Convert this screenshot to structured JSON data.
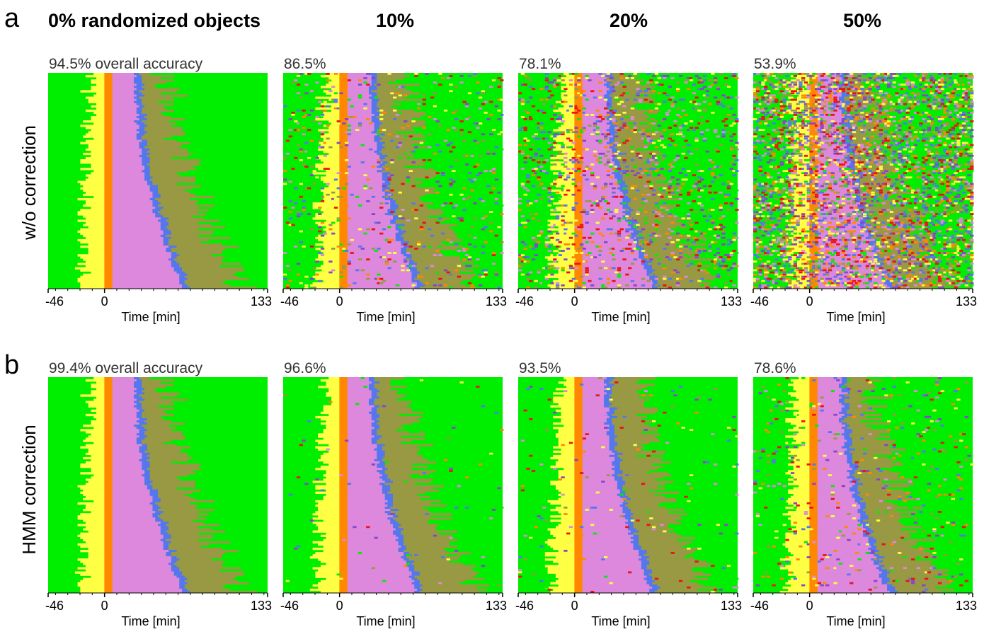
{
  "figure": {
    "panel_letters": [
      "a",
      "b"
    ],
    "column_headers": [
      "0% randomized objects",
      "10%",
      "20%",
      "50%"
    ],
    "row_labels": [
      "w/o correction",
      "HMM correction"
    ]
  },
  "chart_data": [
    {
      "type": "heatmap",
      "panel": "a",
      "row_label": "w/o correction",
      "randomized": "0% randomized objects",
      "accuracy_label": "94.5% overall accuracy",
      "accuracy": 94.5,
      "noise_fraction": 0.0,
      "xlabel": "Time [min]",
      "xticks": [
        "-46",
        "0",
        "133"
      ],
      "xlim": [
        -46,
        133
      ],
      "seed": 11
    },
    {
      "type": "heatmap",
      "panel": "a",
      "row_label": "w/o correction",
      "randomized": "10%",
      "accuracy_label": "86.5%",
      "accuracy": 86.5,
      "noise_fraction": 0.09,
      "xlabel": "Time [min]",
      "xticks": [
        "-46",
        "0",
        "133"
      ],
      "xlim": [
        -46,
        133
      ],
      "seed": 23
    },
    {
      "type": "heatmap",
      "panel": "a",
      "row_label": "w/o correction",
      "randomized": "20%",
      "accuracy_label": "78.1%",
      "accuracy": 78.1,
      "noise_fraction": 0.18,
      "xlabel": "Time [min]",
      "xticks": [
        "-46",
        "0",
        "133"
      ],
      "xlim": [
        -46,
        133
      ],
      "seed": 37
    },
    {
      "type": "heatmap",
      "panel": "a",
      "row_label": "w/o correction",
      "randomized": "50%",
      "accuracy_label": "53.9%",
      "accuracy": 53.9,
      "noise_fraction": 0.45,
      "xlabel": "Time [min]",
      "xticks": [
        "-46",
        "0",
        "133"
      ],
      "xlim": [
        -46,
        133
      ],
      "seed": 41
    },
    {
      "type": "heatmap",
      "panel": "b",
      "row_label": "HMM correction",
      "randomized": "0% randomized objects",
      "accuracy_label": "99.4% overall accuracy",
      "accuracy": 99.4,
      "noise_fraction": 0.0,
      "xlabel": "Time [min]",
      "xticks": [
        "-46",
        "0",
        "133"
      ],
      "xlim": [
        -46,
        133
      ],
      "seed": 11
    },
    {
      "type": "heatmap",
      "panel": "b",
      "row_label": "HMM correction",
      "randomized": "10%",
      "accuracy_label": "96.6%",
      "accuracy": 96.6,
      "noise_fraction": 0.01,
      "xlabel": "Time [min]",
      "xticks": [
        "-46",
        "0",
        "133"
      ],
      "xlim": [
        -46,
        133
      ],
      "seed": 53
    },
    {
      "type": "heatmap",
      "panel": "b",
      "row_label": "HMM correction",
      "randomized": "20%",
      "accuracy_label": "93.5%",
      "accuracy": 93.5,
      "noise_fraction": 0.02,
      "xlabel": "Time [min]",
      "xticks": [
        "-46",
        "0",
        "133"
      ],
      "xlim": [
        -46,
        133
      ],
      "seed": 61
    },
    {
      "type": "heatmap",
      "panel": "b",
      "row_label": "HMM correction",
      "randomized": "50%",
      "accuracy_label": "78.6%",
      "accuracy": 78.6,
      "noise_fraction": 0.06,
      "xlabel": "Time [min]",
      "xticks": [
        "-46",
        "0",
        "133"
      ],
      "xlim": [
        -46,
        133
      ],
      "seed": 71
    }
  ],
  "state_colors": {
    "interphase": "#00ee00",
    "prophase": "#ffff44",
    "prometaphase": "#ff8800",
    "metaphase": "#dd88dd",
    "anaphase": "#5577ee",
    "telophase": "#999944",
    "apoptosis": "#ee1111",
    "other": "#8844cc"
  }
}
